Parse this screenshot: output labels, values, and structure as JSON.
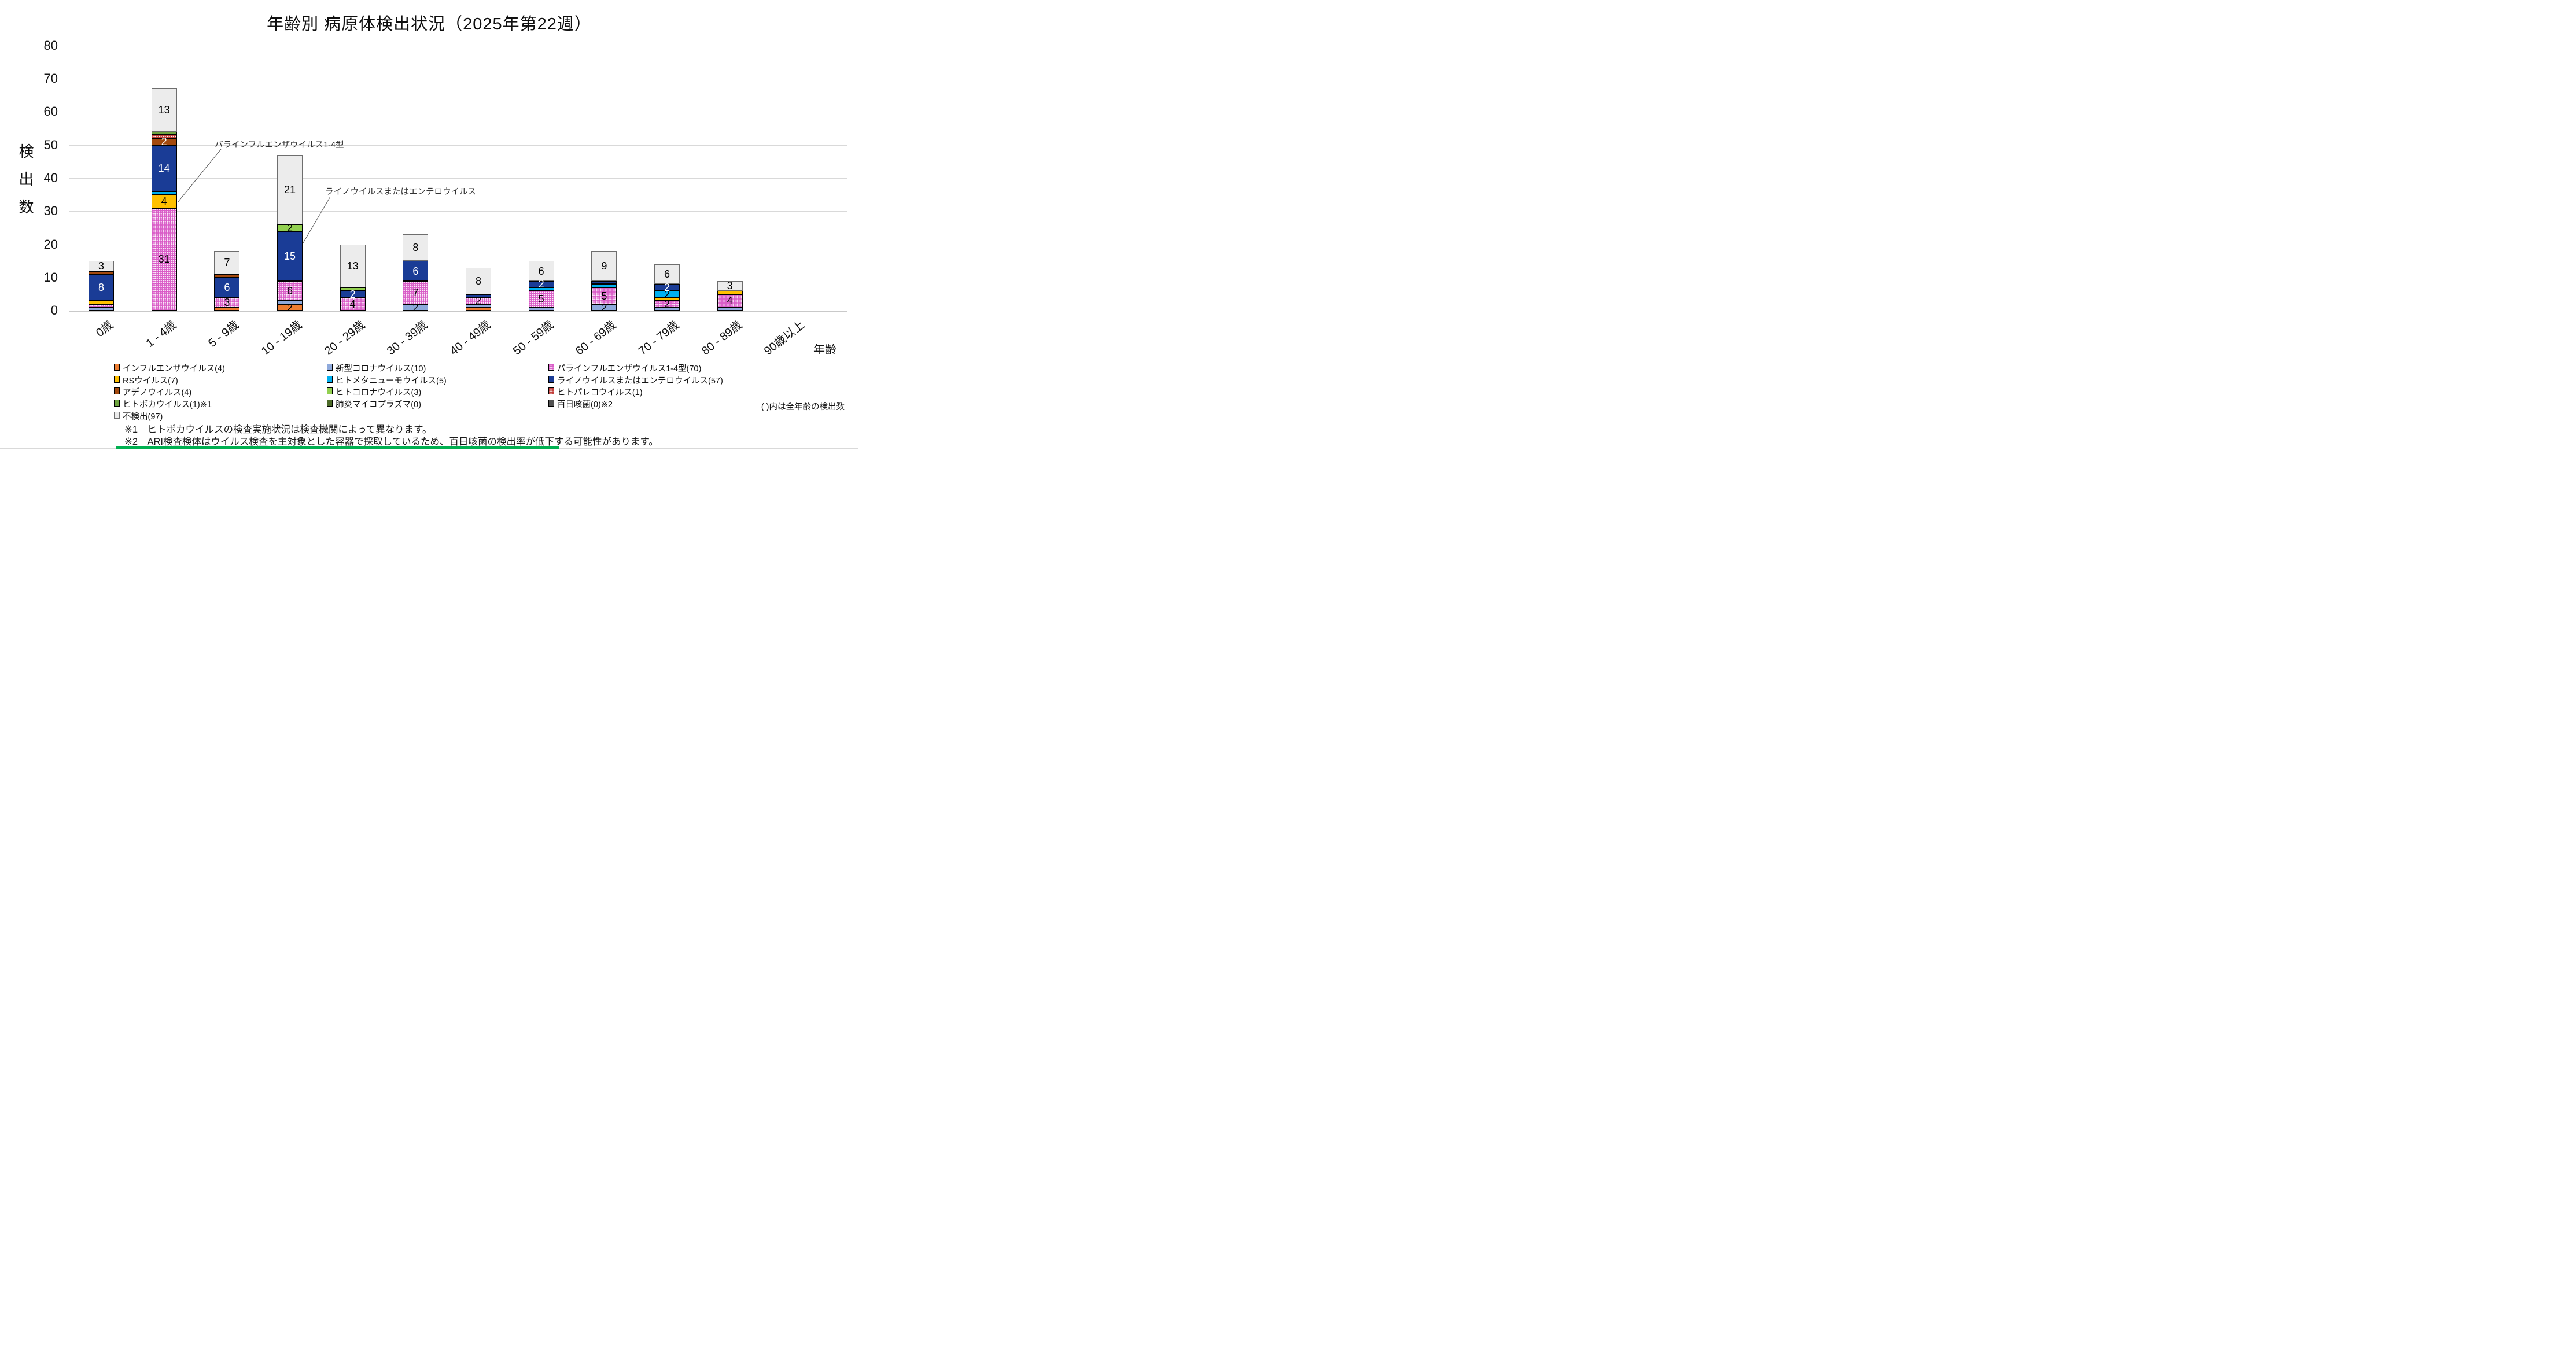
{
  "title": "年齢別 病原体検出状況（2025年第22週）",
  "legend_note": "( )内は全年齢の検出数",
  "footnotes": [
    "※1　ヒトボカウイルスの検査実施状況は検査機関によって異なります。",
    "※2　ARI検査検体はウイルス検査を主対象とした容器で採取しているため、百日咳菌の検出率が低下する可能性があります。"
  ],
  "colors": {
    "grid": "#D9D9D9",
    "window_edge": "#D9D9D9",
    "bottom_strip": "#00B050"
  },
  "chart_data": {
    "type": "bar",
    "stacked": true,
    "title": "年齢別 病原体検出状況（2025年第22週）",
    "ylabel": "検出数",
    "xlabel": "年齢",
    "ylim": [
      0,
      80
    ],
    "ytick_step": 10,
    "grid": true,
    "legend_position": "bottom",
    "label_min_value": 2,
    "categories": [
      "0歳",
      "1 - 4歳",
      "5 - 9歳",
      "10 - 19歳",
      "20 - 29歳",
      "30 - 39歳",
      "40 - 49歳",
      "50 - 59歳",
      "60 - 69歳",
      "70 - 79歳",
      "80 - 89歳",
      "90歳以上"
    ],
    "series": [
      {
        "key": "influenza",
        "name": "インフルエンザウイルス",
        "label": "インフルエンザウイルス(4)",
        "total": 4,
        "color": "#ED7D31",
        "pattern": "none",
        "text": "#000",
        "values": [
          0,
          0,
          1,
          2,
          0,
          0,
          1,
          0,
          0,
          0,
          0,
          0
        ]
      },
      {
        "key": "covid19",
        "name": "新型コロナウイルス",
        "label": "新型コロナウイルス(10)",
        "total": 10,
        "color": "#8FAADC",
        "pattern": "none",
        "text": "#000",
        "values": [
          1,
          0,
          0,
          1,
          0,
          2,
          1,
          1,
          2,
          1,
          1,
          0
        ]
      },
      {
        "key": "parainfluenza",
        "name": "パラインフルエンザウイルス1-4型",
        "label": "パラインフルエンザウイルス1-4型(70)",
        "total": 70,
        "color": "#D95CC7",
        "pattern": "dots",
        "text": "#000",
        "values": [
          1,
          31,
          3,
          6,
          4,
          7,
          2,
          5,
          5,
          2,
          4,
          0
        ]
      },
      {
        "key": "rsv",
        "name": "RSウイルス",
        "label": "RSウイルス(7)",
        "total": 7,
        "color": "#FFC000",
        "pattern": "none",
        "text": "#000",
        "values": [
          1,
          4,
          0,
          0,
          0,
          0,
          0,
          0,
          0,
          1,
          1,
          0
        ]
      },
      {
        "key": "hmpv",
        "name": "ヒトメタニューモウイルス",
        "label": "ヒトメタニューモウイルス(5)",
        "total": 5,
        "color": "#00B0F0",
        "pattern": "none",
        "text": "#000",
        "values": [
          0,
          1,
          0,
          0,
          0,
          0,
          0,
          1,
          1,
          2,
          0,
          0
        ]
      },
      {
        "key": "rhino-entero",
        "name": "ライノウイルスまたはエンテロウイルス",
        "label": "ライノウイルスまたはエンテロウイルス(57)",
        "total": 57,
        "color": "#1A3C96",
        "pattern": "none",
        "text": "#fff",
        "values": [
          8,
          14,
          6,
          15,
          2,
          6,
          1,
          2,
          1,
          2,
          0,
          0
        ]
      },
      {
        "key": "adeno",
        "name": "アデノウイルス",
        "label": "アデノウイルス(4)",
        "total": 4,
        "color": "#A3490E",
        "pattern": "none",
        "text": "#fff",
        "values": [
          1,
          2,
          1,
          0,
          0,
          0,
          0,
          0,
          0,
          0,
          0,
          0
        ]
      },
      {
        "key": "hcov",
        "name": "ヒトコロナウイルス",
        "label": "ヒトコロナウイルス(3)",
        "total": 3,
        "color": "#92D050",
        "pattern": "none",
        "text": "#000",
        "values": [
          0,
          0,
          0,
          2,
          1,
          0,
          0,
          0,
          0,
          0,
          0,
          0
        ]
      },
      {
        "key": "parecho",
        "name": "ヒトパレコウイルス",
        "label": "ヒトパレコウイルス(1)",
        "total": 1,
        "color": "#C03A36",
        "pattern": "dots",
        "text": "#000",
        "values": [
          0,
          1,
          0,
          0,
          0,
          0,
          0,
          0,
          0,
          0,
          0,
          0
        ]
      },
      {
        "key": "boca",
        "name": "ヒトボカウイルス",
        "label": "ヒトボカウイルス(1)※1",
        "total": 1,
        "color": "#6EA43F",
        "pattern": "none",
        "text": "#000",
        "values": [
          0,
          1,
          0,
          0,
          0,
          0,
          0,
          0,
          0,
          0,
          0,
          0
        ]
      },
      {
        "key": "mycoplasma",
        "name": "肺炎マイコプラズマ",
        "label": "肺炎マイコプラズマ(0)",
        "total": 0,
        "color": "#4C6B28",
        "pattern": "none",
        "text": "#fff",
        "values": [
          0,
          0,
          0,
          0,
          0,
          0,
          0,
          0,
          0,
          0,
          0,
          0
        ]
      },
      {
        "key": "pertussis",
        "name": "百日咳菌",
        "label": "百日咳菌(0)※2",
        "total": 0,
        "color": "#525252",
        "pattern": "none",
        "text": "#fff",
        "values": [
          0,
          0,
          0,
          0,
          0,
          0,
          0,
          0,
          0,
          0,
          0,
          0
        ]
      },
      {
        "key": "not-detected",
        "name": "不検出",
        "label": "不検出(97)",
        "total": 97,
        "color": "#ECECEC",
        "pattern": "none",
        "border": "#6E6E6E",
        "text": "#000",
        "values": [
          3,
          13,
          7,
          21,
          13,
          8,
          8,
          6,
          9,
          6,
          3,
          0
        ]
      }
    ],
    "annotations": [
      {
        "text": "パラインフルエンザウイルス1-4型",
        "points_to": "parainfluenza"
      },
      {
        "text": "ライノウイルスまたはエンテロウイルス",
        "points_to": "rhino-entero"
      }
    ]
  }
}
